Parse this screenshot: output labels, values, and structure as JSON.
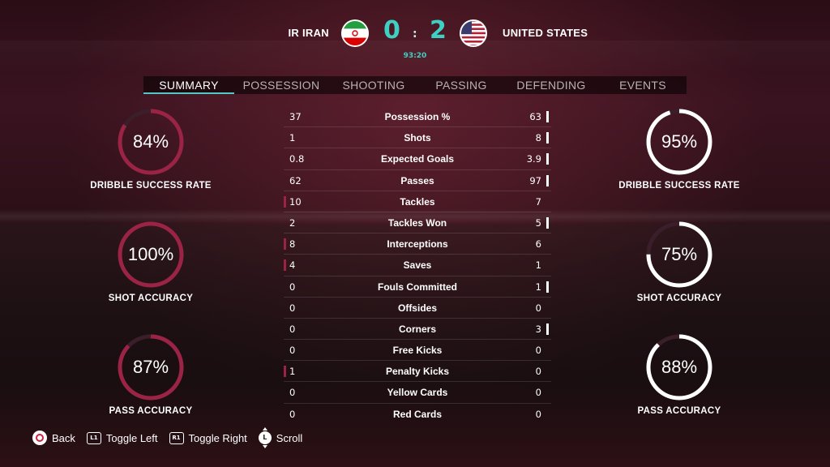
{
  "scoreboard": {
    "home_team": "IR IRAN",
    "away_team": "UNITED STATES",
    "home_score": "0",
    "away_score": "2",
    "separator": ":",
    "clock": "93:20",
    "home_flag_icon": "iran-flag-icon",
    "away_flag_icon": "usa-flag-icon"
  },
  "tabs": [
    {
      "label": "SUMMARY",
      "active": true
    },
    {
      "label": "POSSESSION",
      "active": false
    },
    {
      "label": "SHOOTING",
      "active": false
    },
    {
      "label": "PASSING",
      "active": false
    },
    {
      "label": "DEFENDING",
      "active": false
    },
    {
      "label": "EVENTS",
      "active": false
    }
  ],
  "colors": {
    "accent": "#3fd0c4",
    "home_ring": "#9b2345",
    "away_ring": "#ffffff",
    "ring_track": "#3a1f2a"
  },
  "home_rings": [
    {
      "value": "84%",
      "fraction": 0.84,
      "label": "DRIBBLE SUCCESS RATE"
    },
    {
      "value": "100%",
      "fraction": 1.0,
      "label": "SHOT ACCURACY"
    },
    {
      "value": "87%",
      "fraction": 0.87,
      "label": "PASS ACCURACY"
    }
  ],
  "away_rings": [
    {
      "value": "95%",
      "fraction": 0.95,
      "label": "DRIBBLE SUCCESS RATE"
    },
    {
      "value": "75%",
      "fraction": 0.75,
      "label": "SHOT ACCURACY"
    },
    {
      "value": "88%",
      "fraction": 0.88,
      "label": "PASS ACCURACY"
    }
  ],
  "stats": [
    {
      "name": "Possession %",
      "home": "37",
      "away": "63",
      "leader": "away"
    },
    {
      "name": "Shots",
      "home": "1",
      "away": "8",
      "leader": "away"
    },
    {
      "name": "Expected Goals",
      "home": "0.8",
      "away": "3.9",
      "leader": "away"
    },
    {
      "name": "Passes",
      "home": "62",
      "away": "97",
      "leader": "away"
    },
    {
      "name": "Tackles",
      "home": "10",
      "away": "7",
      "leader": "home"
    },
    {
      "name": "Tackles Won",
      "home": "2",
      "away": "5",
      "leader": "away"
    },
    {
      "name": "Interceptions",
      "home": "8",
      "away": "6",
      "leader": "home"
    },
    {
      "name": "Saves",
      "home": "4",
      "away": "1",
      "leader": "home"
    },
    {
      "name": "Fouls Committed",
      "home": "0",
      "away": "1",
      "leader": "away"
    },
    {
      "name": "Offsides",
      "home": "0",
      "away": "0",
      "leader": "none"
    },
    {
      "name": "Corners",
      "home": "0",
      "away": "3",
      "leader": "away"
    },
    {
      "name": "Free Kicks",
      "home": "0",
      "away": "0",
      "leader": "none"
    },
    {
      "name": "Penalty Kicks",
      "home": "1",
      "away": "0",
      "leader": "home"
    },
    {
      "name": "Yellow Cards",
      "home": "0",
      "away": "0",
      "leader": "none"
    },
    {
      "name": "Red Cards",
      "home": "0",
      "away": "0",
      "leader": "none"
    }
  ],
  "footer": {
    "back_label": "Back",
    "toggle_left_label": "Toggle Left",
    "toggle_right_label": "Toggle Right",
    "scroll_label": "Scroll",
    "l1_glyph": "L1",
    "r1_glyph": "R1",
    "stick_glyph": "L"
  }
}
